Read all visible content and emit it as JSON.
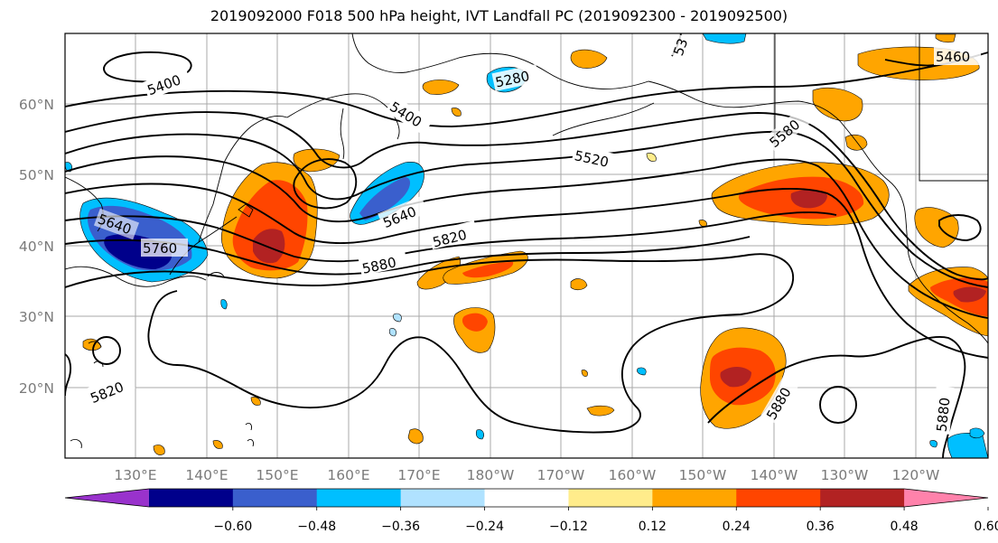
{
  "title": "2019092000 F018 500 hPa height, IVT Landfall PC (2019092300 - 2019092500)",
  "map": {
    "lat_labels": [
      "60°N",
      "50°N",
      "40°N",
      "30°N",
      "20°N"
    ],
    "lon_labels": [
      "130°E",
      "140°E",
      "150°E",
      "160°E",
      "170°E",
      "180°W",
      "170°W",
      "160°W",
      "150°W",
      "140°W",
      "130°W",
      "120°W"
    ],
    "contour_labels": [
      "5400",
      "5280",
      "5400",
      "5460",
      "5520",
      "5640",
      "5820",
      "5880",
      "5760",
      "5640",
      "5820",
      "5880",
      "5880",
      "5580",
      "53"
    ]
  },
  "colorbar": {
    "colors": [
      "#9932cc",
      "#00008b",
      "#3a5fcd",
      "#00bfff",
      "#b0e2ff",
      "#ffffff",
      "#ffec8b",
      "#ffa500",
      "#ff4500",
      "#b22222",
      "#ff82ab"
    ],
    "tick_labels": [
      "−0.60",
      "−0.48",
      "−0.36",
      "−0.24",
      "−0.12",
      "0.12",
      "0.24",
      "0.36",
      "0.48",
      "0.60"
    ]
  }
}
